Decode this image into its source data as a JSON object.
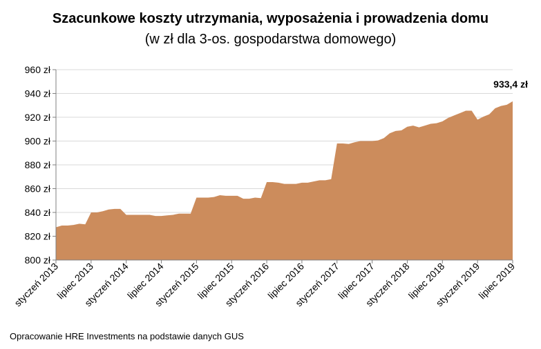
{
  "chart_data": {
    "type": "area",
    "title": "Szacunkowe koszty utrzymania, wyposażenia i prowadzenia domu",
    "subtitle": "(w zł dla 3-os. gospodarstwa domowego)",
    "xlabel": "",
    "ylabel": "",
    "ylim": [
      800,
      960
    ],
    "y_ticks": [
      "800 zł",
      "820 zł",
      "840 zł",
      "860 zł",
      "880 zł",
      "900 zł",
      "920 zł",
      "940 zł",
      "960 zł"
    ],
    "x_ticks": [
      "styczeń 2013",
      "lipiec 2013",
      "styczeń 2014",
      "lipiec 2014",
      "styczeń 2015",
      "lipiec 2015",
      "styczeń 2016",
      "lipiec 2016",
      "styczeń 2017",
      "lipiec 2017",
      "styczeń 2018",
      "lipiec 2018",
      "styczeń 2019",
      "lipiec 2019"
    ],
    "grid": true,
    "legend": "none",
    "fill_color": "#CC8C5C",
    "grid_color": "#D9D9D9",
    "annotation": "933,4 zł",
    "series": [
      {
        "values": [
          827.5,
          829,
          829,
          829.5,
          830.5,
          830,
          840,
          840,
          841,
          842.5,
          843,
          843,
          838,
          838,
          838,
          838,
          838,
          837,
          837,
          837.5,
          838,
          839,
          839,
          839,
          852.5,
          852.5,
          852.5,
          853,
          854.5,
          854,
          854,
          854,
          851.5,
          851.5,
          852.5,
          852,
          865.5,
          865.5,
          865,
          864,
          864,
          864,
          865,
          865,
          866,
          867,
          867,
          868,
          898,
          898,
          897.5,
          899,
          900,
          900,
          900,
          900.5,
          902.5,
          906.5,
          908.5,
          909,
          912,
          913,
          911.5,
          913,
          914.5,
          915,
          916.5,
          919.5,
          921.5,
          923.5,
          925.5,
          925.5,
          918,
          920.5,
          922.5,
          927.5,
          929.5,
          930.5,
          933.4
        ]
      }
    ]
  },
  "source_note": "Opracowanie HRE Investments na podstawie danych GUS"
}
